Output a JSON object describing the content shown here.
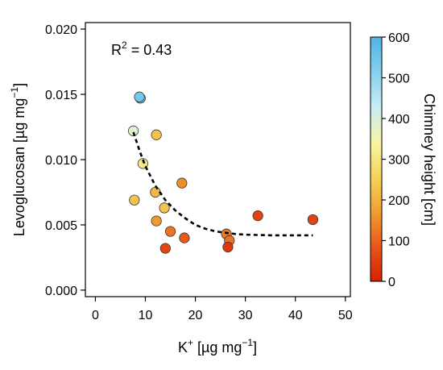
{
  "chart_data": {
    "type": "scatter",
    "x_axis": {
      "label_main": "K",
      "label_sup": "+",
      "label_units": " [µg mg",
      "label_units_sup": "−1",
      "label_close": "]",
      "range": [
        -2,
        51
      ],
      "ticks": [
        0,
        10,
        20,
        30,
        40,
        50
      ],
      "tick_labels": [
        "0",
        "10",
        "20",
        "30",
        "40",
        "50"
      ]
    },
    "y_axis": {
      "label_main": "Levoglucosan [µg mg",
      "label_sup": "−1",
      "label_close": "]",
      "range": [
        -0.0005,
        0.0205
      ],
      "ticks": [
        0.0,
        0.005,
        0.01,
        0.015,
        0.02
      ],
      "tick_labels": [
        "0.000",
        "0.005",
        "0.010",
        "0.015",
        "0.020"
      ]
    },
    "annotation": {
      "prefix": "R",
      "sup": "2",
      "suffix": " = 0.43"
    },
    "colorbar": {
      "label": "Chimney height  [cm]",
      "range": [
        0,
        600
      ],
      "ticks": [
        0,
        100,
        200,
        300,
        400,
        500,
        600
      ],
      "tick_labels": [
        "0",
        "100",
        "200",
        "300",
        "400",
        "500",
        "600"
      ],
      "colors": [
        "#d62000",
        "#e8561a",
        "#f0a030",
        "#f6d45c",
        "#f8f6a6",
        "#c8ecf6",
        "#86d0ee",
        "#4eb4e4"
      ]
    },
    "points": [
      {
        "x": 9.0,
        "y": 0.0147,
        "c": 560
      },
      {
        "x": 8.8,
        "y": 0.0148,
        "c": 540
      },
      {
        "x": 7.6,
        "y": 0.0122,
        "c": 390
      },
      {
        "x": 9.5,
        "y": 0.0097,
        "c": 310
      },
      {
        "x": 12.2,
        "y": 0.0119,
        "c": 225
      },
      {
        "x": 7.8,
        "y": 0.0069,
        "c": 230
      },
      {
        "x": 12.0,
        "y": 0.0075,
        "c": 210
      },
      {
        "x": 13.8,
        "y": 0.0063,
        "c": 230
      },
      {
        "x": 17.3,
        "y": 0.0082,
        "c": 150
      },
      {
        "x": 12.2,
        "y": 0.0053,
        "c": 165
      },
      {
        "x": 15.0,
        "y": 0.0045,
        "c": 120
      },
      {
        "x": 17.8,
        "y": 0.004,
        "c": 90
      },
      {
        "x": 14.0,
        "y": 0.0032,
        "c": 60
      },
      {
        "x": 26.2,
        "y": 0.0043,
        "c": 130
      },
      {
        "x": 26.8,
        "y": 0.0038,
        "c": 120
      },
      {
        "x": 26.5,
        "y": 0.0033,
        "c": 40
      },
      {
        "x": 32.5,
        "y": 0.0057,
        "c": 55
      },
      {
        "x": 43.5,
        "y": 0.0054,
        "c": 55
      }
    ],
    "fit_curve": {
      "style": "dashed",
      "x": [
        7.6,
        9,
        10,
        12,
        14,
        16,
        18,
        20,
        22,
        24,
        26,
        28,
        30,
        35,
        40,
        43.5
      ],
      "y": [
        0.0121,
        0.0105,
        0.0095,
        0.008,
        0.0069,
        0.0061,
        0.0055,
        0.005,
        0.0047,
        0.0045,
        0.0044,
        0.0043,
        0.00425,
        0.0042,
        0.0042,
        0.0042
      ]
    }
  }
}
